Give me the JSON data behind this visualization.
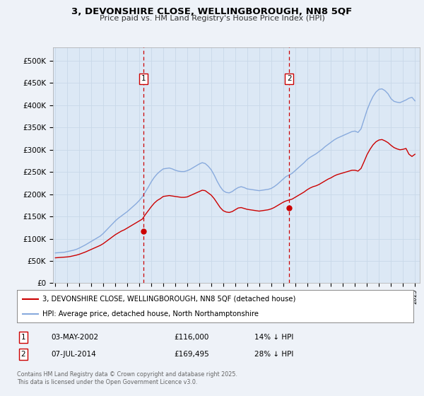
{
  "title_line1": "3, DEVONSHIRE CLOSE, WELLINGBOROUGH, NN8 5QF",
  "title_line2": "Price paid vs. HM Land Registry's House Price Index (HPI)",
  "background_color": "#eef2f8",
  "plot_bg_color": "#dce8f5",
  "grid_color": "#c8d8e8",
  "ylim": [
    0,
    530000
  ],
  "yticks": [
    0,
    50000,
    100000,
    150000,
    200000,
    250000,
    300000,
    350000,
    400000,
    450000,
    500000
  ],
  "marker1_x": 2002.33,
  "marker1_label": "1",
  "marker1_date": "03-MAY-2002",
  "marker1_price": "£116,000",
  "marker1_hpi": "14% ↓ HPI",
  "marker1_price_val": 116000,
  "marker2_x": 2014.5,
  "marker2_label": "2",
  "marker2_date": "07-JUL-2014",
  "marker2_price": "£169,495",
  "marker2_hpi": "28% ↓ HPI",
  "marker2_price_val": 169495,
  "line1_color": "#cc0000",
  "line2_color": "#88aadd",
  "line1_label": "3, DEVONSHIRE CLOSE, WELLINGBOROUGH, NN8 5QF (detached house)",
  "line2_label": "HPI: Average price, detached house, North Northamptonshire",
  "footer": "Contains HM Land Registry data © Crown copyright and database right 2025.\nThis data is licensed under the Open Government Licence v3.0.",
  "hpi_data_x": [
    1995.0,
    1995.25,
    1995.5,
    1995.75,
    1996.0,
    1996.25,
    1996.5,
    1996.75,
    1997.0,
    1997.25,
    1997.5,
    1997.75,
    1998.0,
    1998.25,
    1998.5,
    1998.75,
    1999.0,
    1999.25,
    1999.5,
    1999.75,
    2000.0,
    2000.25,
    2000.5,
    2000.75,
    2001.0,
    2001.25,
    2001.5,
    2001.75,
    2002.0,
    2002.25,
    2002.5,
    2002.75,
    2003.0,
    2003.25,
    2003.5,
    2003.75,
    2004.0,
    2004.25,
    2004.5,
    2004.75,
    2005.0,
    2005.25,
    2005.5,
    2005.75,
    2006.0,
    2006.25,
    2006.5,
    2006.75,
    2007.0,
    2007.25,
    2007.5,
    2007.75,
    2008.0,
    2008.25,
    2008.5,
    2008.75,
    2009.0,
    2009.25,
    2009.5,
    2009.75,
    2010.0,
    2010.25,
    2010.5,
    2010.75,
    2011.0,
    2011.25,
    2011.5,
    2011.75,
    2012.0,
    2012.25,
    2012.5,
    2012.75,
    2013.0,
    2013.25,
    2013.5,
    2013.75,
    2014.0,
    2014.25,
    2014.5,
    2014.75,
    2015.0,
    2015.25,
    2015.5,
    2015.75,
    2016.0,
    2016.25,
    2016.5,
    2016.75,
    2017.0,
    2017.25,
    2017.5,
    2017.75,
    2018.0,
    2018.25,
    2018.5,
    2018.75,
    2019.0,
    2019.25,
    2019.5,
    2019.75,
    2020.0,
    2020.25,
    2020.5,
    2020.75,
    2021.0,
    2021.25,
    2021.5,
    2021.75,
    2022.0,
    2022.25,
    2022.5,
    2022.75,
    2023.0,
    2023.25,
    2023.5,
    2023.75,
    2024.0,
    2024.25,
    2024.5,
    2024.75,
    2025.0
  ],
  "hpi_data_y": [
    68000,
    68500,
    69000,
    69500,
    71000,
    72500,
    74000,
    76000,
    79000,
    82500,
    86000,
    90000,
    94000,
    98000,
    102000,
    106000,
    112000,
    119000,
    126000,
    133000,
    140000,
    146000,
    151000,
    156000,
    161000,
    167000,
    173000,
    179000,
    186000,
    194000,
    205000,
    216000,
    228000,
    238000,
    246000,
    252000,
    257000,
    258000,
    259000,
    257000,
    254000,
    252000,
    251000,
    251000,
    253000,
    256000,
    260000,
    264000,
    268000,
    271000,
    269000,
    263000,
    255000,
    243000,
    229000,
    217000,
    208000,
    204000,
    203000,
    206000,
    211000,
    215000,
    217000,
    215000,
    212000,
    211000,
    210000,
    209000,
    208000,
    209000,
    210000,
    211000,
    213000,
    217000,
    222000,
    228000,
    234000,
    240000,
    243000,
    247000,
    253000,
    259000,
    265000,
    271000,
    278000,
    283000,
    287000,
    291000,
    296000,
    301000,
    307000,
    312000,
    317000,
    322000,
    326000,
    329000,
    332000,
    335000,
    338000,
    341000,
    342000,
    339000,
    347000,
    368000,
    389000,
    406000,
    420000,
    430000,
    436000,
    437000,
    433000,
    426000,
    415000,
    409000,
    407000,
    406000,
    409000,
    412000,
    416000,
    418000,
    410000
  ],
  "price_data_x": [
    1995.0,
    1995.25,
    1995.5,
    1995.75,
    1996.0,
    1996.25,
    1996.5,
    1996.75,
    1997.0,
    1997.25,
    1997.5,
    1997.75,
    1998.0,
    1998.25,
    1998.5,
    1998.75,
    1999.0,
    1999.25,
    1999.5,
    1999.75,
    2000.0,
    2000.25,
    2000.5,
    2000.75,
    2001.0,
    2001.25,
    2001.5,
    2001.75,
    2002.0,
    2002.25,
    2002.5,
    2002.75,
    2003.0,
    2003.25,
    2003.5,
    2003.75,
    2004.0,
    2004.25,
    2004.5,
    2004.75,
    2005.0,
    2005.25,
    2005.5,
    2005.75,
    2006.0,
    2006.25,
    2006.5,
    2006.75,
    2007.0,
    2007.25,
    2007.5,
    2007.75,
    2008.0,
    2008.25,
    2008.5,
    2008.75,
    2009.0,
    2009.25,
    2009.5,
    2009.75,
    2010.0,
    2010.25,
    2010.5,
    2010.75,
    2011.0,
    2011.25,
    2011.5,
    2011.75,
    2012.0,
    2012.25,
    2012.5,
    2012.75,
    2013.0,
    2013.25,
    2013.5,
    2013.75,
    2014.0,
    2014.25,
    2014.5,
    2014.75,
    2015.0,
    2015.25,
    2015.5,
    2015.75,
    2016.0,
    2016.25,
    2016.5,
    2016.75,
    2017.0,
    2017.25,
    2017.5,
    2017.75,
    2018.0,
    2018.25,
    2018.5,
    2018.75,
    2019.0,
    2019.25,
    2019.5,
    2019.75,
    2020.0,
    2020.25,
    2020.5,
    2020.75,
    2021.0,
    2021.25,
    2021.5,
    2021.75,
    2022.0,
    2022.25,
    2022.5,
    2022.75,
    2023.0,
    2023.25,
    2023.5,
    2023.75,
    2024.0,
    2024.25,
    2024.5,
    2024.75,
    2025.0
  ],
  "price_data_y": [
    57000,
    57500,
    58000,
    58500,
    59000,
    60000,
    61500,
    63000,
    65000,
    67500,
    70000,
    73000,
    76000,
    79000,
    82000,
    85000,
    89000,
    94000,
    99000,
    104000,
    109000,
    113000,
    117000,
    120000,
    124000,
    128000,
    132000,
    136000,
    140000,
    144000,
    154000,
    163000,
    172000,
    180000,
    186000,
    190000,
    195000,
    196000,
    197000,
    196000,
    195000,
    194000,
    193000,
    193000,
    194000,
    197000,
    200000,
    203000,
    206000,
    209000,
    208000,
    203000,
    198000,
    190000,
    180000,
    170000,
    163000,
    160000,
    159000,
    161000,
    165000,
    169000,
    170000,
    168000,
    166000,
    165000,
    164000,
    163000,
    162000,
    163000,
    164000,
    165000,
    167000,
    170000,
    174000,
    178000,
    182000,
    185000,
    187000,
    189000,
    193000,
    197000,
    201000,
    205000,
    210000,
    214000,
    217000,
    219000,
    222000,
    226000,
    230000,
    234000,
    237000,
    241000,
    244000,
    246000,
    248000,
    250000,
    252000,
    254000,
    254000,
    252000,
    258000,
    273000,
    289000,
    301000,
    311000,
    318000,
    322000,
    323000,
    320000,
    316000,
    310000,
    305000,
    302000,
    300000,
    301000,
    303000,
    290000,
    285000,
    290000
  ]
}
